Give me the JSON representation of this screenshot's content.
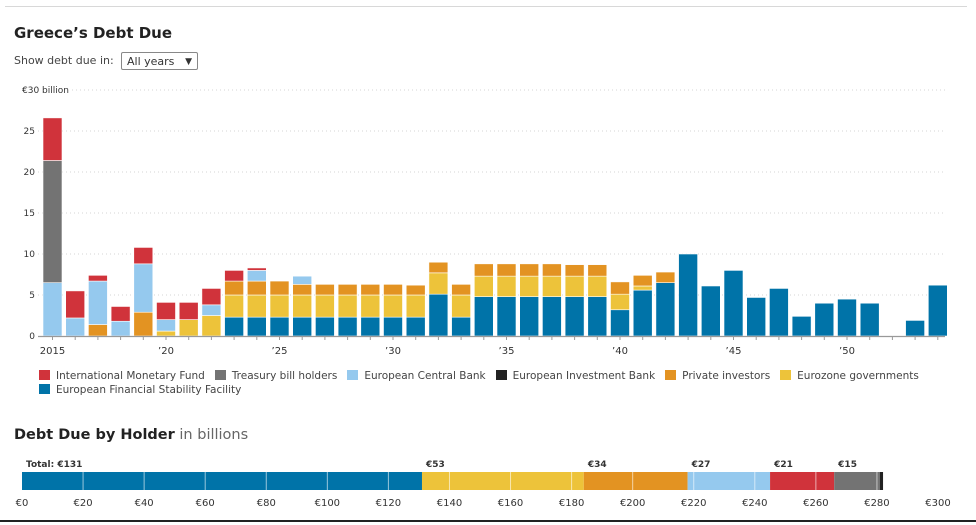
{
  "header": {
    "title": "Greece’s Debt Due",
    "filter_label": "Show debt due in:",
    "filter_value": "All years",
    "filter_arrow": "▼"
  },
  "colors": {
    "imf": "#d0333b",
    "tbill": "#737373",
    "ecb": "#95c9ee",
    "eib": "#222222",
    "private": "#e39322",
    "eurozone": "#edc33a",
    "efsf": "#0073a8"
  },
  "chart_data": [
    {
      "type": "bar",
      "stacked": true,
      "title": "Greece’s Debt Due",
      "ylabel": "€30 billion",
      "ylim": [
        0,
        30
      ],
      "yticks": [
        0,
        5,
        10,
        15,
        20,
        25
      ],
      "ytick_top_label": "€30 billion",
      "grid": true,
      "legend_position": "bottom",
      "x": [
        2015,
        2016,
        2017,
        2018,
        2019,
        2020,
        2021,
        2022,
        2023,
        2024,
        2025,
        2026,
        2027,
        2028,
        2029,
        2030,
        2031,
        2032,
        2033,
        2034,
        2035,
        2036,
        2037,
        2038,
        2039,
        2040,
        2041,
        2042,
        2043,
        2044,
        2045,
        2046,
        2047,
        2048,
        2049,
        2050,
        2051,
        2052,
        2053,
        2054
      ],
      "xtick_labels": [
        {
          "year": 2015,
          "label": "2015"
        },
        {
          "year": 2020,
          "label": "’20"
        },
        {
          "year": 2025,
          "label": "’25"
        },
        {
          "year": 2030,
          "label": "’30"
        },
        {
          "year": 2035,
          "label": "’35"
        },
        {
          "year": 2040,
          "label": "’40"
        },
        {
          "year": 2045,
          "label": "’45"
        },
        {
          "year": 2050,
          "label": "’50"
        }
      ],
      "series": [
        {
          "key": "efsf",
          "name": "European Financial Stability Facility",
          "values": [
            0,
            0,
            0,
            0,
            0,
            0,
            0,
            0,
            2.3,
            2.3,
            2.3,
            2.3,
            2.3,
            2.3,
            2.3,
            2.3,
            2.3,
            5.1,
            2.3,
            4.8,
            4.8,
            4.8,
            4.8,
            4.8,
            4.8,
            3.2,
            5.6,
            6.5,
            10.0,
            6.1,
            8.0,
            4.7,
            5.8,
            2.4,
            4.0,
            4.5,
            4.0,
            0,
            1.9,
            6.2
          ]
        },
        {
          "key": "eurozone",
          "name": "Eurozone governments",
          "values": [
            0,
            0,
            0,
            0,
            0,
            0.6,
            2.0,
            2.5,
            2.7,
            2.7,
            2.7,
            2.7,
            2.7,
            2.7,
            2.7,
            2.7,
            2.7,
            2.6,
            2.7,
            2.5,
            2.5,
            2.5,
            2.5,
            2.5,
            2.5,
            1.9,
            0.5,
            0,
            0,
            0,
            0,
            0,
            0,
            0,
            0,
            0,
            0,
            0,
            0,
            0
          ]
        },
        {
          "key": "private",
          "name": "Private investors",
          "values": [
            0,
            0,
            1.4,
            0,
            2.9,
            0,
            0,
            0,
            1.7,
            1.7,
            1.7,
            1.3,
            1.3,
            1.3,
            1.3,
            1.3,
            1.2,
            1.3,
            1.3,
            1.5,
            1.5,
            1.5,
            1.5,
            1.4,
            1.4,
            1.5,
            1.3,
            1.3,
            0,
            0,
            0,
            0,
            0,
            0,
            0,
            0,
            0,
            0,
            0,
            0
          ]
        },
        {
          "key": "eib",
          "name": "European Investment Bank",
          "values": [
            0,
            0,
            0,
            0,
            0,
            0,
            0,
            0,
            0,
            0,
            0,
            0,
            0,
            0,
            0,
            0,
            0,
            0,
            0,
            0,
            0,
            0,
            0,
            0,
            0,
            0,
            0,
            0,
            0,
            0,
            0,
            0,
            0,
            0,
            0,
            0,
            0,
            0,
            0,
            0
          ]
        },
        {
          "key": "ecb",
          "name": "European Central Bank",
          "values": [
            6.5,
            2.2,
            5.3,
            1.8,
            5.9,
            1.4,
            0,
            1.3,
            0,
            1.3,
            0,
            1.0,
            0,
            0,
            0,
            0,
            0,
            0,
            0,
            0,
            0,
            0,
            0,
            0,
            0,
            0,
            0,
            0,
            0,
            0,
            0,
            0,
            0,
            0,
            0,
            0,
            0,
            0,
            0,
            0
          ]
        },
        {
          "key": "tbill",
          "name": "Treasury bill holders",
          "values": [
            14.9,
            0,
            0,
            0,
            0,
            0,
            0,
            0,
            0,
            0,
            0,
            0,
            0,
            0,
            0,
            0,
            0,
            0,
            0,
            0,
            0,
            0,
            0,
            0,
            0,
            0,
            0,
            0,
            0,
            0,
            0,
            0,
            0,
            0,
            0,
            0,
            0,
            0,
            0,
            0
          ]
        },
        {
          "key": "imf",
          "name": "International Monetary Fund",
          "values": [
            5.2,
            3.3,
            0.7,
            1.8,
            2.0,
            2.1,
            2.1,
            2.0,
            1.3,
            0.3,
            0,
            0,
            0,
            0,
            0,
            0,
            0,
            0,
            0,
            0,
            0,
            0,
            0,
            0,
            0,
            0,
            0,
            0,
            0,
            0,
            0,
            0,
            0,
            0,
            0,
            0,
            0,
            0,
            0,
            0
          ]
        }
      ],
      "legend": [
        {
          "key": "imf",
          "label": "International Monetary Fund"
        },
        {
          "key": "tbill",
          "label": "Treasury bill holders"
        },
        {
          "key": "ecb",
          "label": "European Central Bank"
        },
        {
          "key": "eib",
          "label": "European Investment Bank"
        },
        {
          "key": "private",
          "label": "Private investors"
        },
        {
          "key": "eurozone",
          "label": "Eurozone governments"
        },
        {
          "key": "efsf",
          "label": "European Financial Stability Facility"
        }
      ]
    },
    {
      "type": "bar",
      "orientation": "horizontal-stacked",
      "title": "Debt Due by Holder",
      "title_suffix": "in billions",
      "xlim": [
        0,
        300
      ],
      "xticks": [
        0,
        20,
        40,
        60,
        80,
        100,
        120,
        140,
        160,
        180,
        200,
        220,
        240,
        260,
        280,
        300
      ],
      "xtick_prefix": "€",
      "segments": [
        {
          "key": "efsf",
          "value": 131,
          "label": "Total: €131"
        },
        {
          "key": "eurozone",
          "value": 53,
          "label": "€53"
        },
        {
          "key": "private",
          "value": 34,
          "label": "€34"
        },
        {
          "key": "ecb",
          "value": 27,
          "label": "€27"
        },
        {
          "key": "imf",
          "value": 21,
          "label": "€21"
        },
        {
          "key": "tbill",
          "value": 15,
          "label": "€15"
        },
        {
          "key": "eib",
          "value": 1,
          "label": ""
        }
      ]
    }
  ]
}
